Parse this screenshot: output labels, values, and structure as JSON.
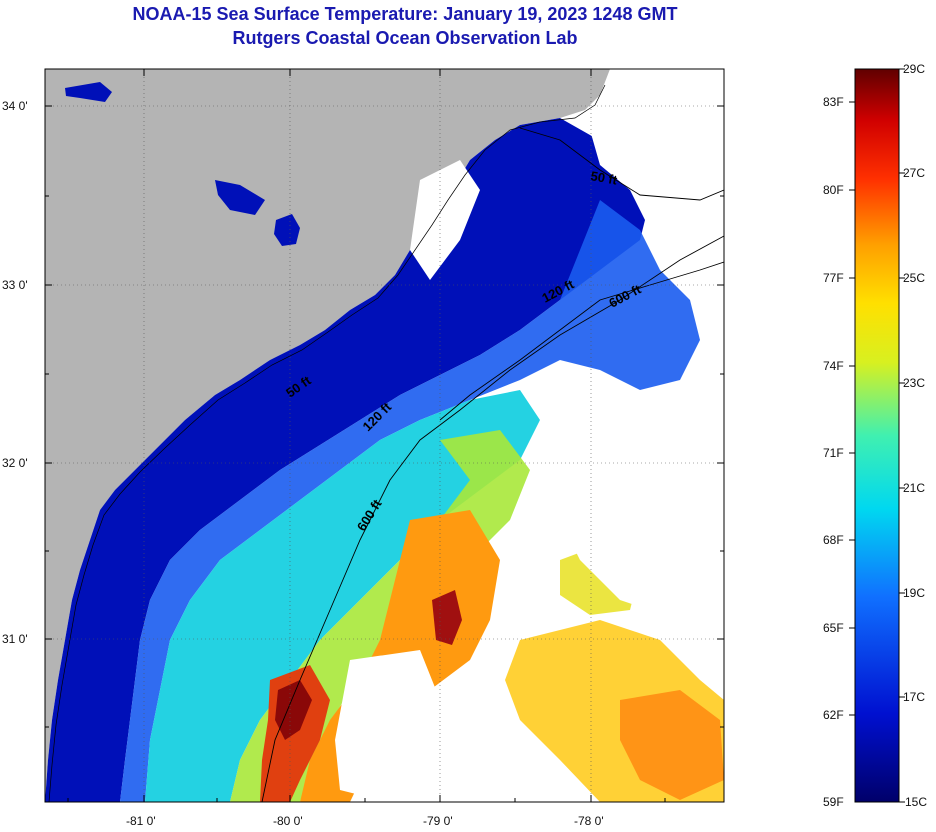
{
  "header": {
    "title": "NOAA-15 Sea Surface Temperature:  January 19, 2023 1248 GMT",
    "subtitle": "Rutgers Coastal Ocean Observation Lab"
  },
  "map": {
    "lat_labels": [
      "34 0'",
      "33 0'",
      "32 0'",
      "31 0'"
    ],
    "lon_labels": [
      "-81 0'",
      "-80 0'",
      "-79 0'",
      "-78 0'"
    ],
    "contour_labels": [
      "50 ft",
      "120 ft",
      "600 ft",
      "50 ft",
      "120 ft",
      "600 ft"
    ]
  },
  "colorbar": {
    "fahrenheit": [
      "83F",
      "80F",
      "77F",
      "74F",
      "71F",
      "68F",
      "65F",
      "62F",
      "59F"
    ],
    "celsius": [
      "29C",
      "27C",
      "25C",
      "23C",
      "21C",
      "19C",
      "17C",
      "15C"
    ]
  }
}
